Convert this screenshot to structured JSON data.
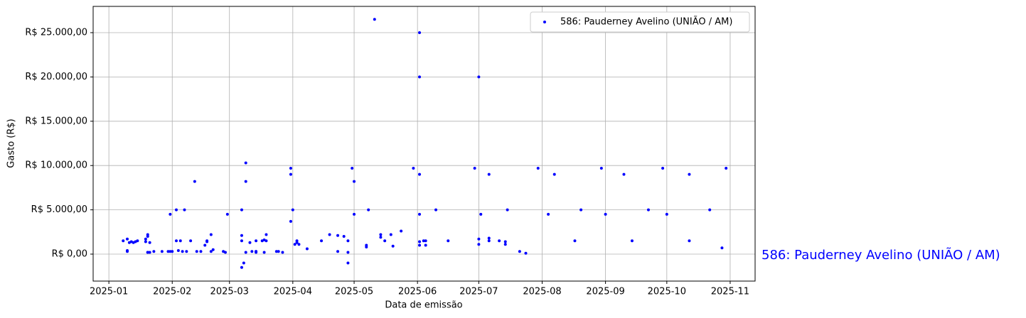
{
  "chart_data": {
    "type": "scatter",
    "xlabel": "Data de emissão",
    "ylabel": "Gasto (R$)",
    "annotation": "586: Pauderney Avelino (UNIÃO / AM)",
    "grid": true,
    "legend": "upper right",
    "xlim": [
      -7.7,
      316.2
    ],
    "ylim": [
      -3045,
      27965
    ],
    "xticks": [
      {
        "value": 0,
        "label": "2025-01"
      },
      {
        "value": 31,
        "label": "2025-02"
      },
      {
        "value": 59,
        "label": "2025-03"
      },
      {
        "value": 90,
        "label": "2025-04"
      },
      {
        "value": 120,
        "label": "2025-05"
      },
      {
        "value": 151,
        "label": "2025-06"
      },
      {
        "value": 181,
        "label": "2025-07"
      },
      {
        "value": 212,
        "label": "2025-08"
      },
      {
        "value": 243,
        "label": "2025-09"
      },
      {
        "value": 273,
        "label": "2025-10"
      },
      {
        "value": 304,
        "label": "2025-11"
      }
    ],
    "yticks": [
      {
        "value": 0,
        "label": "R$ 0,00"
      },
      {
        "value": 5000,
        "label": "R$ 5.000,00"
      },
      {
        "value": 10000,
        "label": "R$ 10.000,00"
      },
      {
        "value": 15000,
        "label": "R$ 15.000,00"
      },
      {
        "value": 20000,
        "label": "R$ 20.000,00"
      },
      {
        "value": 25000,
        "label": "R$ 25.000,00"
      }
    ],
    "series": [
      {
        "name": "586: Pauderney Avelino (UNIÃO / AM)",
        "color": "#0000ff",
        "x": [
          7,
          9,
          9,
          10,
          11,
          12,
          13,
          14,
          9,
          18,
          18,
          19,
          19,
          19,
          20,
          20,
          19,
          22,
          26,
          29,
          30,
          30,
          31,
          33,
          33,
          34,
          35,
          36,
          37,
          38,
          40,
          42,
          43,
          45,
          47,
          48,
          48,
          50,
          50,
          51,
          56,
          57,
          58,
          65,
          65,
          65,
          65,
          66,
          67,
          67,
          67,
          69,
          70,
          72,
          72,
          72,
          72,
          75,
          76,
          76,
          77,
          77,
          82,
          83,
          85,
          89,
          89,
          89,
          90,
          91,
          92,
          92,
          93,
          97,
          104,
          108,
          112,
          112,
          115,
          117,
          117,
          117,
          119,
          120,
          120,
          126,
          126,
          127,
          130,
          133,
          133,
          135,
          138,
          139,
          143,
          149,
          152,
          152,
          152,
          152,
          152,
          152,
          154,
          155,
          155,
          160,
          166,
          179,
          181,
          181,
          182,
          181,
          186,
          186,
          186,
          191,
          194,
          194,
          195,
          201,
          204,
          210,
          215,
          218,
          228,
          231,
          241,
          243,
          252,
          256,
          264,
          271,
          273,
          284,
          284,
          294,
          300,
          302
        ],
        "values": [
          1500,
          1700,
          300,
          1300,
          1400,
          1300,
          1400,
          1500,
          400,
          1700,
          1400,
          200,
          2000,
          2200,
          1300,
          200,
          200,
          300,
          300,
          300,
          4500,
          300,
          300,
          5000,
          1500,
          400,
          1500,
          300,
          5000,
          300,
          1500,
          8200,
          300,
          300,
          1000,
          1400,
          1500,
          2200,
          300,
          500,
          300,
          200,
          4500,
          5000,
          1500,
          2100,
          -1500,
          -1000,
          200,
          10300,
          8200,
          1300,
          300,
          300,
          300,
          200,
          1500,
          1500,
          1600,
          200,
          2200,
          1500,
          300,
          300,
          200,
          9700,
          3700,
          9000,
          5000,
          1100,
          1300,
          1500,
          1100,
          600,
          1500,
          2200,
          300,
          2100,
          2000,
          1500,
          200,
          -1000,
          9700,
          8200,
          4500,
          800,
          1000,
          5000,
          26500,
          1900,
          2200,
          1500,
          2200,
          900,
          2600,
          9700,
          9000,
          1000,
          1400,
          4500,
          25000,
          20000,
          1500,
          1000,
          1500,
          5000,
          1500,
          9700,
          1700,
          1100,
          4500,
          20000,
          9000,
          1800,
          1500,
          1500,
          1400,
          1100,
          5000,
          300,
          100,
          9700,
          4500,
          9000,
          1500,
          5000,
          9700,
          4500,
          9000,
          1500,
          5000,
          9700,
          4500,
          9000,
          1500,
          5000,
          700,
          9700
        ]
      }
    ]
  }
}
